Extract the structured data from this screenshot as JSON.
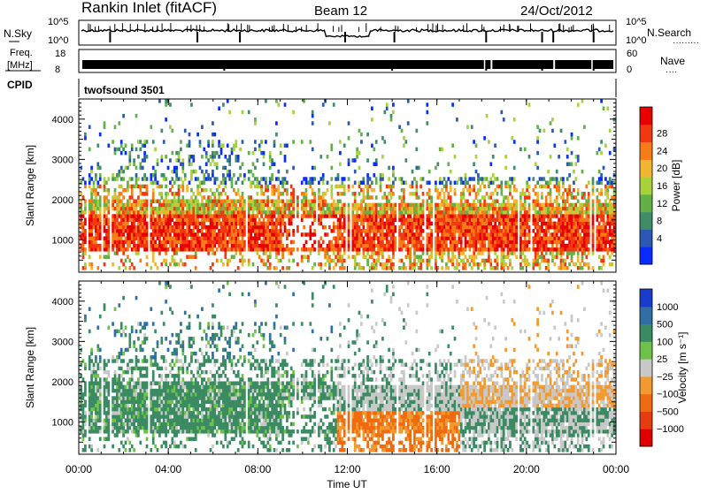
{
  "header": {
    "station": "Rankin Inlet (fitACF)",
    "beam": "Beam 12",
    "date": "24/Oct/2012"
  },
  "top_panels": {
    "nsky_label": "N.Sky",
    "nsearch_label": "N.Search",
    "freq_label_1": "Freq.",
    "freq_label_2": "[MHz]",
    "nave_label": "Nave",
    "cpid_label": "CPID",
    "cpid_value": "twofsound 3501",
    "noise_ticks": [
      "10^5",
      "10^0"
    ],
    "freq_ticks": [
      "18",
      "8"
    ],
    "nave_ticks": [
      "60",
      "0"
    ]
  },
  "colors": {
    "power": [
      "#0a2bff",
      "#2b58b2",
      "#3e8c68",
      "#62b046",
      "#a8d23a",
      "#f2b632",
      "#f77c16",
      "#f23810",
      "#e60000"
    ],
    "velocity": [
      "#1a3ccc",
      "#2f6fa4",
      "#3a8a62",
      "#6ec24a",
      "#c8c8c8",
      "#f29a2e",
      "#f06a10",
      "#e63c10",
      "#e00000"
    ]
  },
  "chart_data": [
    {
      "type": "heatmap",
      "panel": "power",
      "ylabel": "Slant Range [km]",
      "xlabel": "Time UT",
      "xlim": [
        0,
        24
      ],
      "ylim": [
        200,
        4500
      ],
      "x_ticks": [
        "00:00",
        "04:00",
        "08:00",
        "12:00",
        "16:00",
        "20:00",
        "00:00"
      ],
      "y_ticks": [
        1000,
        2000,
        3000,
        4000
      ],
      "colorbar": {
        "label": "Power [dB]",
        "ticks": [
          "4",
          "8",
          "12",
          "16",
          "20",
          "24",
          "28"
        ],
        "range": [
          0,
          30
        ]
      }
    },
    {
      "type": "heatmap",
      "panel": "velocity",
      "ylabel": "Slant Range [km]",
      "xlabel": "Time UT",
      "xlim": [
        0,
        24
      ],
      "ylim": [
        200,
        4500
      ],
      "x_ticks": [
        "00:00",
        "04:00",
        "08:00",
        "12:00",
        "16:00",
        "20:00",
        "00:00"
      ],
      "y_ticks": [
        1000,
        2000,
        3000,
        4000
      ],
      "colorbar": {
        "label": "Velocity [m s⁻¹]",
        "ticks": [
          "1000",
          "500",
          "100",
          "25",
          "−25",
          "−100",
          "−500",
          "−1000"
        ]
      }
    }
  ]
}
